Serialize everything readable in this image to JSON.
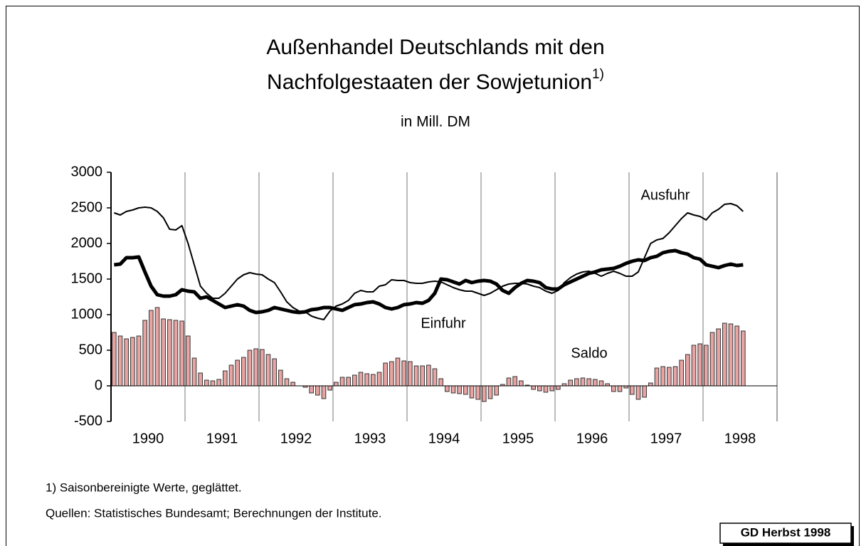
{
  "chart_data": {
    "type": "combo",
    "title": [
      "Außenhandel Deutschlands mit den",
      "Nachfolgestaaten der Sowjetunion"
    ],
    "title_note": "1)",
    "subtitle": "in Mill. DM",
    "categories": [
      "1990",
      null,
      null,
      null,
      null,
      null,
      null,
      null,
      null,
      null,
      null,
      null,
      "1991",
      null,
      null,
      null,
      null,
      null,
      null,
      null,
      null,
      null,
      null,
      null,
      "1992",
      null,
      null,
      null,
      null,
      null,
      null,
      null,
      null,
      null,
      null,
      null,
      "1993",
      null,
      null,
      null,
      null,
      null,
      null,
      null,
      null,
      null,
      null,
      null,
      "1994",
      null,
      null,
      null,
      null,
      null,
      null,
      null,
      null,
      null,
      null,
      null,
      "1995",
      null,
      null,
      null,
      null,
      null,
      null,
      null,
      null,
      null,
      null,
      null,
      "1996",
      null,
      null,
      null,
      null,
      null,
      null,
      null,
      null,
      null,
      null,
      null,
      "1997",
      null,
      null,
      null,
      null,
      null,
      null,
      null,
      null,
      null,
      null,
      null,
      "1998",
      null,
      null,
      null,
      null,
      null,
      null
    ],
    "series": [
      {
        "name": "Ausfuhr",
        "type": "line",
        "color": "#000000",
        "values": [
          2430,
          2400,
          2450,
          2470,
          2500,
          2510,
          2500,
          2450,
          2360,
          2200,
          2190,
          2250,
          2000,
          1700,
          1400,
          1300,
          1230,
          1230,
          1300,
          1400,
          1500,
          1560,
          1590,
          1570,
          1560,
          1500,
          1450,
          1320,
          1180,
          1100,
          1050,
          1040,
          980,
          950,
          930,
          1050,
          1120,
          1150,
          1200,
          1300,
          1340,
          1320,
          1320,
          1400,
          1420,
          1490,
          1480,
          1480,
          1450,
          1440,
          1440,
          1460,
          1470,
          1460,
          1420,
          1380,
          1350,
          1330,
          1330,
          1300,
          1270,
          1300,
          1350,
          1400,
          1430,
          1440,
          1440,
          1430,
          1400,
          1380,
          1330,
          1300,
          1340,
          1450,
          1520,
          1570,
          1600,
          1610,
          1580,
          1540,
          1580,
          1610,
          1580,
          1540,
          1540,
          1600,
          1800,
          2000,
          2050,
          2070,
          2150,
          2250,
          2350,
          2430,
          2400,
          2380,
          2330,
          2430,
          2480,
          2550,
          2560,
          2530,
          2450
        ]
      },
      {
        "name": "Einfuhr",
        "type": "line",
        "color": "#000000",
        "values": [
          1700,
          1710,
          1800,
          1800,
          1810,
          1600,
          1400,
          1280,
          1260,
          1260,
          1280,
          1350,
          1330,
          1320,
          1230,
          1250,
          1200,
          1150,
          1100,
          1120,
          1140,
          1120,
          1060,
          1030,
          1040,
          1060,
          1100,
          1080,
          1060,
          1040,
          1030,
          1040,
          1070,
          1080,
          1100,
          1100,
          1080,
          1060,
          1100,
          1140,
          1150,
          1170,
          1180,
          1150,
          1100,
          1080,
          1100,
          1140,
          1150,
          1170,
          1160,
          1200,
          1300,
          1500,
          1490,
          1460,
          1430,
          1480,
          1450,
          1470,
          1480,
          1470,
          1430,
          1340,
          1300,
          1380,
          1440,
          1480,
          1470,
          1450,
          1380,
          1360,
          1360,
          1420,
          1460,
          1500,
          1540,
          1580,
          1600,
          1630,
          1640,
          1650,
          1680,
          1720,
          1750,
          1770,
          1760,
          1800,
          1820,
          1870,
          1890,
          1900,
          1870,
          1850,
          1800,
          1780,
          1700,
          1680,
          1660,
          1690,
          1710,
          1690,
          1700
        ]
      },
      {
        "name": "Saldo",
        "type": "bar",
        "color": "#e8a3a3",
        "values": [
          750,
          700,
          660,
          680,
          700,
          920,
          1060,
          1100,
          940,
          930,
          920,
          910,
          700,
          390,
          180,
          80,
          70,
          90,
          210,
          290,
          360,
          400,
          500,
          520,
          510,
          440,
          380,
          220,
          100,
          50,
          0,
          -20,
          -100,
          -130,
          -180,
          -60,
          50,
          120,
          120,
          150,
          190,
          170,
          160,
          190,
          320,
          340,
          390,
          350,
          340,
          280,
          280,
          290,
          240,
          100,
          -80,
          -100,
          -110,
          -120,
          -170,
          -190,
          -220,
          -180,
          -130,
          20,
          110,
          130,
          70,
          10,
          -50,
          -70,
          -90,
          -70,
          -50,
          30,
          80,
          100,
          110,
          100,
          90,
          70,
          30,
          -80,
          -80,
          -30,
          -120,
          -190,
          -160,
          40,
          250,
          270,
          260,
          270,
          360,
          440,
          570,
          590,
          570,
          750,
          800,
          880,
          870,
          840,
          770
        ]
      }
    ],
    "ylim": [
      -500,
      3000
    ],
    "yticks": [
      -500,
      0,
      500,
      1000,
      1500,
      2000,
      2500,
      3000
    ],
    "footnotes": [
      "1) Saisonbereinigte Werte, geglättet.",
      "Quellen: Statistisches Bundesamt; Berechnungen der Institute."
    ],
    "badge": "GD Herbst 1998"
  }
}
